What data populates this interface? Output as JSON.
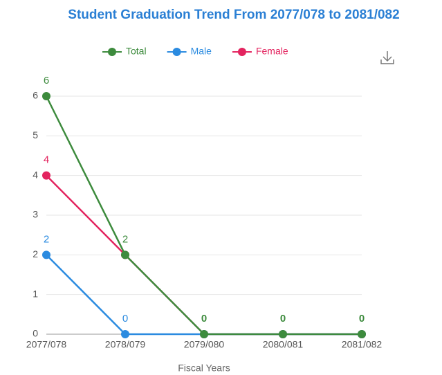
{
  "chart_data": {
    "type": "line",
    "title": "Student Graduation Trend From 2077/078 to 2081/082",
    "categories": [
      "2077/078",
      "2078/079",
      "2079/080",
      "2080/081",
      "2081/082"
    ],
    "series": [
      {
        "name": "Total",
        "color": "#3d8b3d",
        "values": [
          6,
          2,
          0,
          0,
          0
        ]
      },
      {
        "name": "Male",
        "color": "#2b8be0",
        "values": [
          2,
          0,
          0,
          0,
          0
        ]
      },
      {
        "name": "Female",
        "color": "#e3245f",
        "values": [
          4,
          2,
          0,
          0,
          0
        ]
      }
    ],
    "xlabel": "Fiscal Years",
    "ylim": [
      0,
      6
    ],
    "yticks": [
      0,
      1,
      2,
      3,
      4,
      5,
      6
    ],
    "grid": true
  }
}
